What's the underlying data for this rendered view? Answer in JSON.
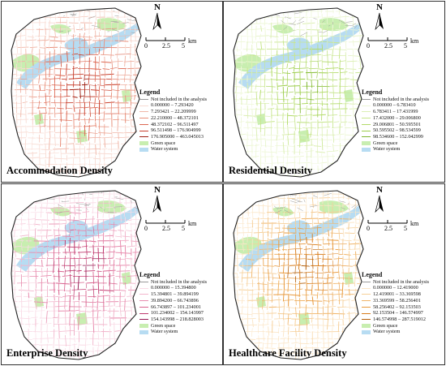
{
  "colors": {
    "not_included": "#9a9a9a",
    "green_space": "#c8eeb0",
    "water": "#b7dcf2",
    "boundary": "#222222"
  },
  "panels": [
    {
      "id": "accommodation",
      "title": "Accommodation Density",
      "legend_title": "Legend",
      "not_included_label": "Not included in the analysis",
      "green_label": "Green space",
      "water_label": "Water system",
      "north_label": "N",
      "scale": {
        "ticks": [
          "0",
          "2.5",
          "5"
        ],
        "unit": "km"
      },
      "classes": [
        "0.000000 – 7.293420",
        "7.293421 – 22.209999",
        "22.210000 – 48.372101",
        "48.372102 – 96.511497",
        "96.511498 – 176.904999",
        "176.905000 – 463.045013"
      ],
      "class_colors": [
        "#f8dcd4",
        "#f0b7a8",
        "#e8907c",
        "#dc6752",
        "#c8412f",
        "#9e1f12"
      ]
    },
    {
      "id": "residential",
      "title": "Residential Density",
      "legend_title": "Legend",
      "not_included_label": "Not included in the analysis",
      "green_label": "Green space",
      "water_label": "Water system",
      "north_label": "N",
      "scale": {
        "ticks": [
          "0",
          "2.5",
          "5"
        ],
        "unit": "km"
      },
      "classes": [
        "0.000000 – 6.783410",
        "6.783411 – 17.431999",
        "17.432000 – 29.006800",
        "29.006801 – 50.595501",
        "50.595502 – 98.534599",
        "98.534600 – 152.042999"
      ],
      "class_colors": [
        "#eef7d8",
        "#dcefb4",
        "#c8e68e",
        "#b3db6a",
        "#9ccd4a",
        "#7eb62e"
      ]
    },
    {
      "id": "enterprise",
      "title": "Enterprise Density",
      "legend_title": "Legend",
      "not_included_label": "Not included in the analysis",
      "green_label": "Green space",
      "water_label": "Water system",
      "north_label": "N",
      "scale": {
        "ticks": [
          "0",
          "2.5",
          "5"
        ],
        "unit": "km"
      },
      "classes": [
        "0.000000 – 15.394800",
        "15.394801 – 39.894199",
        "39.894200 – 66.743896",
        "66.743897 – 101.234001",
        "101.234002 – 154.143997",
        "154.143998 – 218.828003"
      ],
      "class_colors": [
        "#f9dbe6",
        "#f2b6cc",
        "#e88daf",
        "#d9638f",
        "#c03b70",
        "#931852"
      ]
    },
    {
      "id": "healthcare",
      "title": "Healthcare Facility Density",
      "legend_title": "Legend",
      "not_included_label": "Not included in the analysis",
      "green_label": "Green space",
      "water_label": "Water system",
      "north_label": "N",
      "scale": {
        "ticks": [
          "0",
          "2.5",
          "5"
        ],
        "unit": "km"
      },
      "classes": [
        "0.000000 – 12.419000",
        "12.419001 – 33.369598",
        "33.369599 – 58.256401",
        "58.256402 – 92.153503",
        "92.153504 – 146.574997",
        "146.574998 – 287.519012"
      ],
      "class_colors": [
        "#fbe6c8",
        "#f6cf98",
        "#f0b56a",
        "#e89a3e",
        "#d87d1c",
        "#b35e08"
      ]
    }
  ]
}
